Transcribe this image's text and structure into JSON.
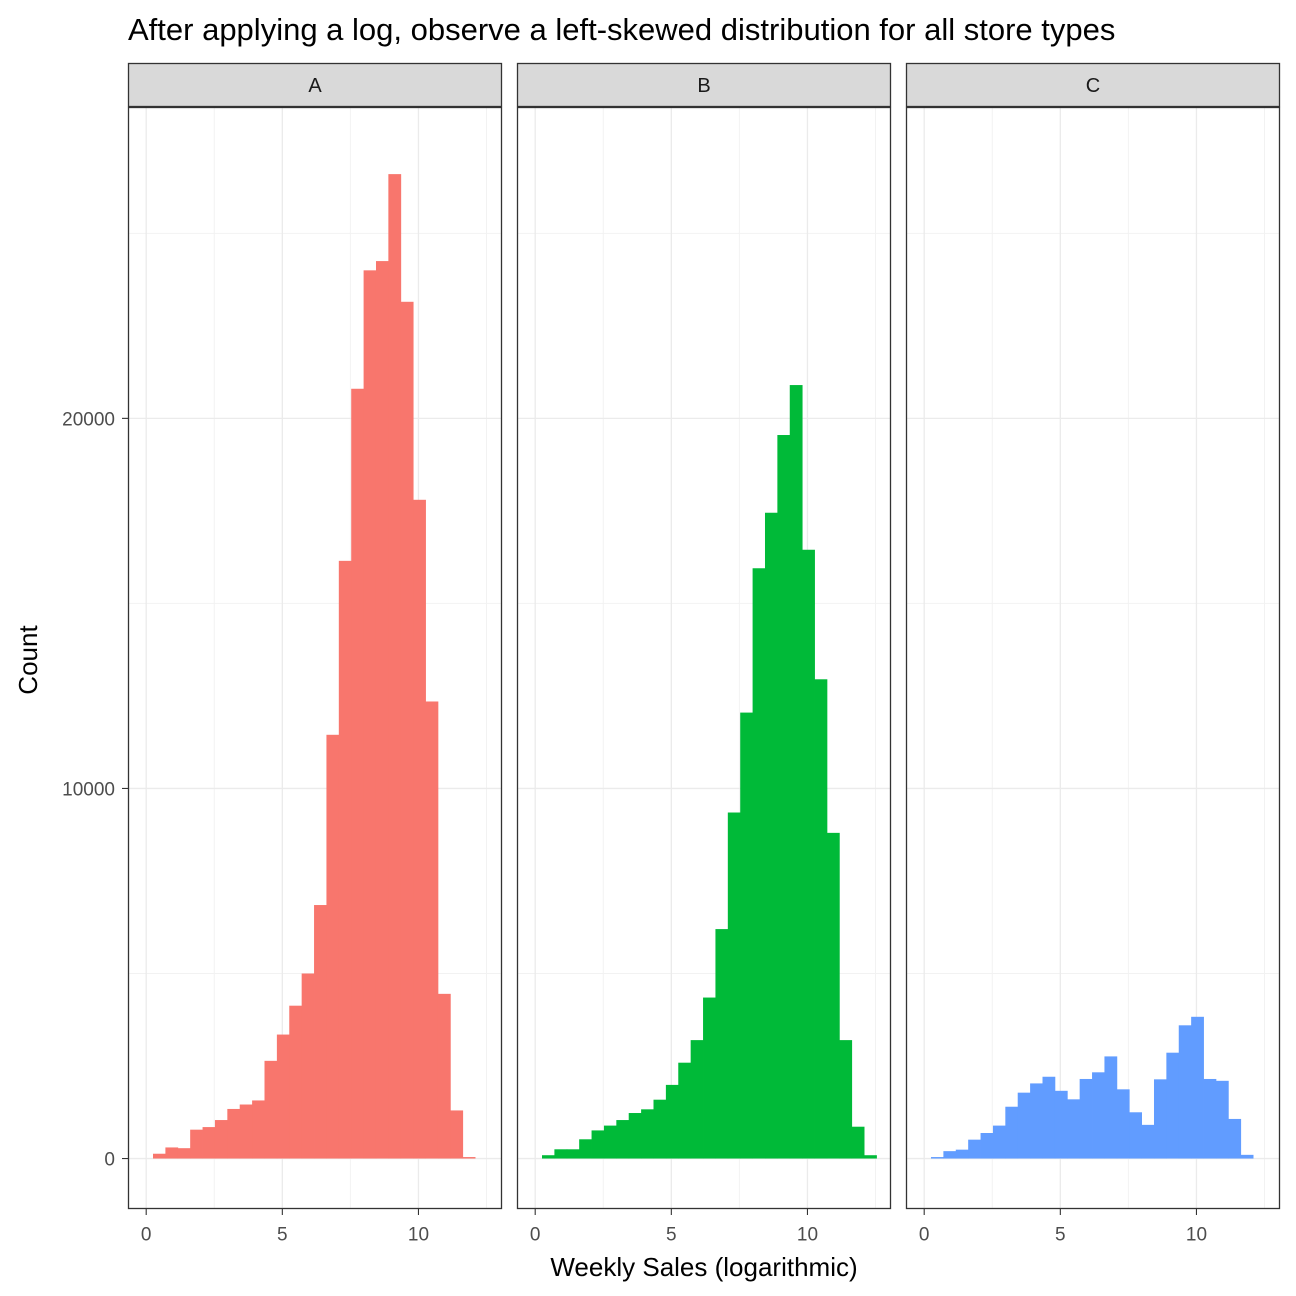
{
  "chart_data": {
    "type": "bar",
    "title": "After applying a log, observe a left-skewed distribution for all store types",
    "xlabel": "Weekly Sales (logarithmic)",
    "ylabel": "Count",
    "xlim": [
      -0.65,
      13.05
    ],
    "ylim": [
      -1350,
      28400
    ],
    "x_ticks": [
      0,
      5,
      10
    ],
    "y_ticks": [
      0,
      10000,
      20000
    ],
    "bin_start": 0.25,
    "bin_width": 0.455,
    "grid": true,
    "legend": "none",
    "panels": [
      {
        "name": "A",
        "color": "#F8766D",
        "counts": [
          130,
          300,
          280,
          780,
          850,
          1040,
          1340,
          1460,
          1570,
          2640,
          3350,
          4130,
          5000,
          6850,
          11450,
          16150,
          20800,
          24000,
          24250,
          26600,
          23150,
          17800,
          12350,
          4450,
          1300,
          40
        ]
      },
      {
        "name": "B",
        "color": "#00BA38",
        "counts": [
          90,
          250,
          250,
          520,
          760,
          890,
          1040,
          1230,
          1330,
          1590,
          1990,
          2590,
          3200,
          4350,
          6200,
          9350,
          12050,
          15950,
          17450,
          19550,
          20900,
          16450,
          12950,
          8800,
          3200,
          860,
          90
        ]
      },
      {
        "name": "C",
        "color": "#619CFF",
        "counts": [
          40,
          200,
          240,
          510,
          690,
          890,
          1400,
          1780,
          2030,
          2210,
          1830,
          1600,
          2150,
          2330,
          2760,
          1870,
          1250,
          910,
          2140,
          2860,
          3600,
          3830,
          2150,
          2100,
          1070,
          100
        ]
      }
    ]
  }
}
